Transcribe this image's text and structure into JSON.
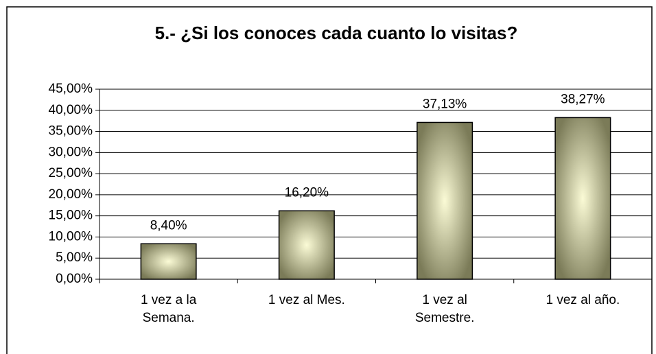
{
  "chart_data": {
    "type": "bar",
    "title": "5.- ¿Si los conoces cada cuanto lo visitas?",
    "categories": [
      "1 vez a la Semana.",
      "1 vez al Mes.",
      "1 vez al Semestre.",
      "1 vez al año."
    ],
    "values": [
      8.4,
      16.2,
      37.13,
      38.27
    ],
    "value_labels": [
      "8,40%",
      "16,20%",
      "37,13%",
      "38,27%"
    ],
    "color": "#8a8a64",
    "ylim": [
      0,
      45
    ],
    "yticks": [
      {
        "value": 0,
        "label": "0,00%"
      },
      {
        "value": 5,
        "label": "5,00%"
      },
      {
        "value": 10,
        "label": "10,00%"
      },
      {
        "value": 15,
        "label": "15,00%"
      },
      {
        "value": 20,
        "label": "20,00%"
      },
      {
        "value": 25,
        "label": "25,00%"
      },
      {
        "value": 30,
        "label": "30,00%"
      },
      {
        "value": 35,
        "label": "35,00%"
      },
      {
        "value": 40,
        "label": "40,00%"
      },
      {
        "value": 45,
        "label": "45,00%"
      }
    ],
    "grid": true
  }
}
